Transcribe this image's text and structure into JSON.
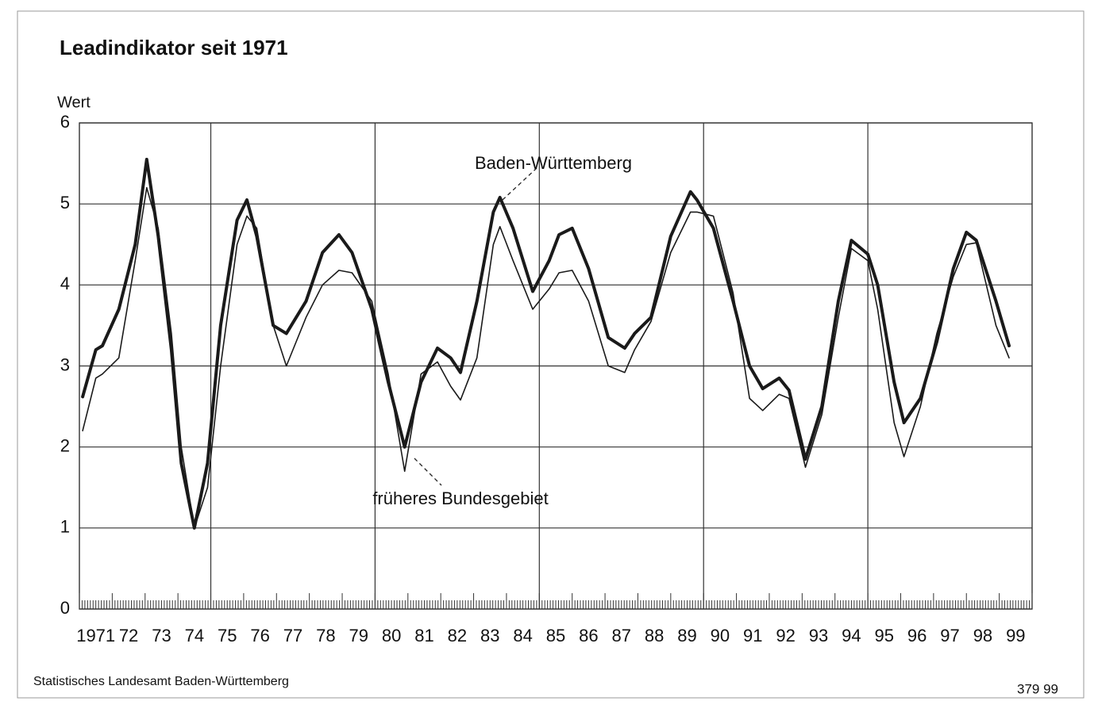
{
  "chart_data": {
    "type": "line",
    "title": "Leadindikator seit 1971",
    "y_label": "Wert",
    "source": "Statistisches Landesamt Baden-Württemberg",
    "footnote": "379 99",
    "x": [
      1971.1,
      1971.5,
      1971.7,
      1972.2,
      1972.7,
      1973.05,
      1973.4,
      1973.8,
      1974.1,
      1974.5,
      1974.9,
      1975.3,
      1975.8,
      1976.1,
      1976.4,
      1976.9,
      1977.3,
      1977.9,
      1978.4,
      1978.9,
      1979.3,
      1979.9,
      1980.4,
      1980.9,
      1981.4,
      1981.9,
      1982.3,
      1982.6,
      1983.1,
      1983.6,
      1983.8,
      1984.2,
      1984.8,
      1985.3,
      1985.6,
      1986.0,
      1986.5,
      1987.1,
      1987.6,
      1987.9,
      1988.4,
      1989.0,
      1989.6,
      1989.8,
      1990.3,
      1990.9,
      1991.4,
      1991.8,
      1992.3,
      1992.6,
      1993.1,
      1993.6,
      1994.1,
      1994.5,
      1995.0,
      1995.3,
      1995.8,
      1996.1,
      1996.6,
      1997.1,
      1997.6,
      1998.0,
      1998.3,
      1998.9,
      1999.3
    ],
    "series": [
      {
        "name": "Baden-Württemberg",
        "color": "#1a1a1a",
        "width": 4,
        "values": [
          2.62,
          3.2,
          3.25,
          3.7,
          4.5,
          5.55,
          4.6,
          3.2,
          1.8,
          1.0,
          1.8,
          3.5,
          4.8,
          5.05,
          4.6,
          3.5,
          3.4,
          3.8,
          4.4,
          4.62,
          4.4,
          3.7,
          2.8,
          2.0,
          2.8,
          3.22,
          3.1,
          2.92,
          3.8,
          4.9,
          5.08,
          4.7,
          3.92,
          4.3,
          4.62,
          4.7,
          4.2,
          3.35,
          3.22,
          3.4,
          3.6,
          4.6,
          5.15,
          5.05,
          4.7,
          3.8,
          3.0,
          2.72,
          2.85,
          2.7,
          1.85,
          2.5,
          3.8,
          4.55,
          4.38,
          4.0,
          2.8,
          2.3,
          2.6,
          3.3,
          4.2,
          4.65,
          4.55,
          3.8,
          3.25
        ]
      },
      {
        "name": "früheres Bundesgebiet",
        "color": "#1a1a1a",
        "width": 1.6,
        "values": [
          2.2,
          2.85,
          2.9,
          3.1,
          4.3,
          5.2,
          4.7,
          3.4,
          2.0,
          1.0,
          1.5,
          3.0,
          4.5,
          4.85,
          4.7,
          3.5,
          3.0,
          3.6,
          4.0,
          4.18,
          4.15,
          3.8,
          2.9,
          1.7,
          2.9,
          3.05,
          2.75,
          2.58,
          3.1,
          4.5,
          4.72,
          4.3,
          3.7,
          3.95,
          4.15,
          4.18,
          3.8,
          3.0,
          2.92,
          3.2,
          3.55,
          4.4,
          4.9,
          4.9,
          4.85,
          3.9,
          2.6,
          2.45,
          2.65,
          2.6,
          1.75,
          2.4,
          3.6,
          4.45,
          4.3,
          3.7,
          2.3,
          1.88,
          2.5,
          3.4,
          4.1,
          4.5,
          4.52,
          3.5,
          3.1
        ]
      }
    ],
    "xlim": [
      1971,
      2000
    ],
    "xticks": [
      {
        "value": 1971.5,
        "label": "1971"
      },
      {
        "value": 1972.5,
        "label": "72"
      },
      {
        "value": 1973.5,
        "label": "73"
      },
      {
        "value": 1974.5,
        "label": "74"
      },
      {
        "value": 1975.5,
        "label": "75"
      },
      {
        "value": 1976.5,
        "label": "76"
      },
      {
        "value": 1977.5,
        "label": "77"
      },
      {
        "value": 1978.5,
        "label": "78"
      },
      {
        "value": 1979.5,
        "label": "79"
      },
      {
        "value": 1980.5,
        "label": "80"
      },
      {
        "value": 1981.5,
        "label": "81"
      },
      {
        "value": 1982.5,
        "label": "82"
      },
      {
        "value": 1983.5,
        "label": "83"
      },
      {
        "value": 1984.5,
        "label": "84"
      },
      {
        "value": 1985.5,
        "label": "85"
      },
      {
        "value": 1986.5,
        "label": "86"
      },
      {
        "value": 1987.5,
        "label": "87"
      },
      {
        "value": 1988.5,
        "label": "88"
      },
      {
        "value": 1989.5,
        "label": "89"
      },
      {
        "value": 1990.5,
        "label": "90"
      },
      {
        "value": 1991.5,
        "label": "91"
      },
      {
        "value": 1992.5,
        "label": "92"
      },
      {
        "value": 1993.5,
        "label": "93"
      },
      {
        "value": 1994.5,
        "label": "94"
      },
      {
        "value": 1995.5,
        "label": "95"
      },
      {
        "value": 1996.5,
        "label": "96"
      },
      {
        "value": 1997.5,
        "label": "97"
      },
      {
        "value": 1998.5,
        "label": "98"
      },
      {
        "value": 1999.5,
        "label": "99"
      }
    ],
    "xgrid": [
      1975,
      1980,
      1985,
      1990,
      1995
    ],
    "ylim": [
      0,
      6
    ],
    "yticks": [
      0,
      1,
      2,
      3,
      4,
      5,
      6
    ],
    "grid": true
  }
}
